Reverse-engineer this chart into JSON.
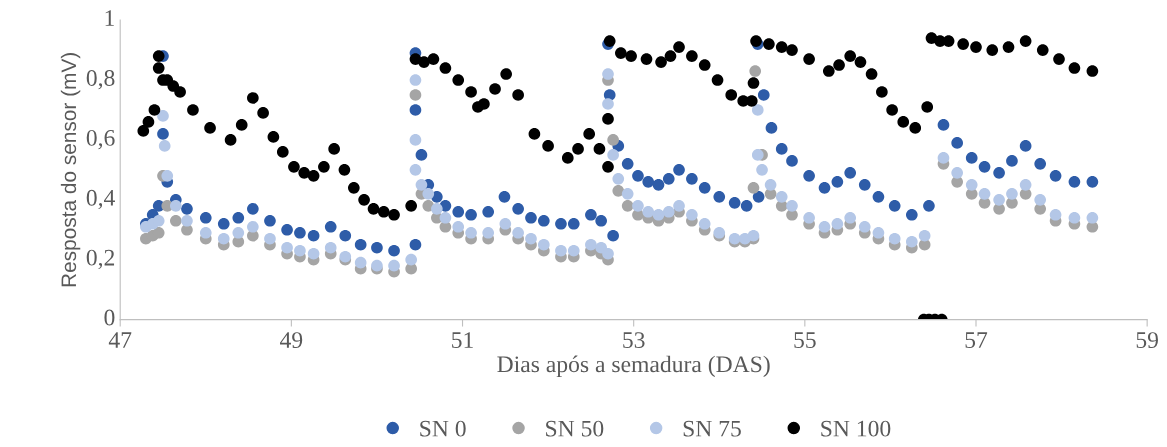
{
  "chart_data": {
    "type": "scatter",
    "xlabel": "Dias após a semadura (DAS)",
    "ylabel": "Resposta do sensor (mV)",
    "xlim": [
      47,
      59
    ],
    "xticks": [
      47,
      49,
      51,
      53,
      55,
      57,
      59
    ],
    "ylim": [
      0,
      1
    ],
    "yticks": [
      0,
      {
        "value": 0.2,
        "label": "0,2"
      },
      {
        "value": 0.4,
        "label": "0,4"
      },
      {
        "value": 0.6,
        "label": "0,6"
      },
      {
        "value": 0.8,
        "label": "0,8"
      },
      1
    ],
    "grid": false,
    "legend": "bottom",
    "marker": "circle",
    "series": [
      {
        "name": "SN 0",
        "color": "#2e5ca8",
        "x": [
          47.3,
          47.38,
          47.45,
          47.5,
          47.5,
          47.55,
          47.65,
          47.78,
          48.0,
          48.21,
          48.38,
          48.55,
          48.75,
          48.95,
          49.1,
          49.26,
          49.46,
          49.63,
          49.81,
          50.0,
          50.2,
          50.45,
          50.45,
          50.45,
          50.52,
          50.6,
          50.7,
          50.8,
          50.95,
          51.1,
          51.3,
          51.49,
          51.65,
          51.8,
          51.95,
          52.15,
          52.3,
          52.5,
          52.62,
          52.76,
          52.7,
          52.72,
          52.82,
          52.93,
          53.05,
          53.17,
          53.29,
          53.41,
          53.53,
          53.68,
          53.83,
          54.0,
          54.18,
          54.32,
          54.46,
          54.45,
          54.52,
          54.61,
          54.73,
          54.85,
          55.05,
          55.23,
          55.38,
          55.53,
          55.7,
          55.86,
          56.05,
          56.25,
          56.45,
          56.62,
          56.78,
          56.95,
          57.1,
          57.27,
          57.42,
          57.58,
          57.75,
          57.93,
          58.15,
          58.36
        ],
        "values": [
          0.32,
          0.35,
          0.38,
          0.88,
          0.62,
          0.46,
          0.4,
          0.37,
          0.34,
          0.32,
          0.34,
          0.37,
          0.33,
          0.3,
          0.29,
          0.28,
          0.31,
          0.28,
          0.25,
          0.24,
          0.23,
          0.25,
          0.89,
          0.7,
          0.55,
          0.45,
          0.41,
          0.38,
          0.36,
          0.35,
          0.36,
          0.41,
          0.37,
          0.34,
          0.33,
          0.32,
          0.32,
          0.35,
          0.33,
          0.28,
          0.92,
          0.75,
          0.58,
          0.52,
          0.48,
          0.46,
          0.45,
          0.47,
          0.5,
          0.47,
          0.44,
          0.41,
          0.39,
          0.38,
          0.41,
          0.92,
          0.75,
          0.64,
          0.57,
          0.53,
          0.48,
          0.44,
          0.46,
          0.49,
          0.45,
          0.41,
          0.38,
          0.35,
          0.38,
          0.65,
          0.59,
          0.54,
          0.51,
          0.49,
          0.53,
          0.58,
          0.52,
          0.48,
          0.46,
          0.46
        ]
      },
      {
        "name": "SN 50",
        "color": "#a5a5a5",
        "x": [
          47.3,
          47.38,
          47.45,
          47.5,
          47.55,
          47.65,
          47.78,
          48.0,
          48.21,
          48.38,
          48.55,
          48.75,
          48.95,
          49.1,
          49.26,
          49.46,
          49.63,
          49.81,
          50.0,
          50.2,
          50.4,
          50.45,
          50.52,
          50.6,
          50.7,
          50.8,
          50.95,
          51.1,
          51.3,
          51.5,
          51.65,
          51.8,
          51.95,
          52.15,
          52.3,
          52.5,
          52.62,
          52.7,
          52.7,
          52.76,
          52.82,
          52.93,
          53.05,
          53.17,
          53.29,
          53.41,
          53.53,
          53.68,
          53.83,
          54.0,
          54.18,
          54.3,
          54.4,
          54.4,
          54.42,
          54.5,
          54.6,
          54.73,
          54.85,
          55.05,
          55.23,
          55.38,
          55.53,
          55.7,
          55.86,
          56.05,
          56.25,
          56.4,
          56.62,
          56.78,
          56.95,
          57.1,
          57.27,
          57.42,
          57.58,
          57.75,
          57.93,
          58.15,
          58.36
        ],
        "values": [
          0.27,
          0.28,
          0.29,
          0.48,
          0.38,
          0.33,
          0.3,
          0.27,
          0.25,
          0.26,
          0.28,
          0.25,
          0.22,
          0.21,
          0.2,
          0.22,
          0.2,
          0.17,
          0.17,
          0.16,
          0.17,
          0.75,
          0.42,
          0.38,
          0.34,
          0.31,
          0.29,
          0.27,
          0.27,
          0.3,
          0.27,
          0.25,
          0.23,
          0.21,
          0.21,
          0.23,
          0.22,
          0.2,
          0.8,
          0.6,
          0.43,
          0.38,
          0.35,
          0.34,
          0.33,
          0.34,
          0.36,
          0.33,
          0.3,
          0.28,
          0.26,
          0.26,
          0.27,
          0.44,
          0.83,
          0.55,
          0.42,
          0.38,
          0.35,
          0.32,
          0.29,
          0.3,
          0.32,
          0.29,
          0.27,
          0.25,
          0.24,
          0.25,
          0.52,
          0.46,
          0.42,
          0.39,
          0.37,
          0.39,
          0.42,
          0.37,
          0.33,
          0.32,
          0.31
        ]
      },
      {
        "name": "SN 75",
        "color": "#b4c7e7",
        "x": [
          47.3,
          47.38,
          47.45,
          47.5,
          47.52,
          47.55,
          47.65,
          47.78,
          48.0,
          48.21,
          48.38,
          48.55,
          48.75,
          48.95,
          49.1,
          49.26,
          49.46,
          49.63,
          49.81,
          50.0,
          50.2,
          50.4,
          50.45,
          50.45,
          50.45,
          50.52,
          50.6,
          50.7,
          50.8,
          50.95,
          51.1,
          51.3,
          51.5,
          51.65,
          51.8,
          51.95,
          52.15,
          52.3,
          52.5,
          52.62,
          52.7,
          52.7,
          52.7,
          52.76,
          52.82,
          52.93,
          53.05,
          53.17,
          53.29,
          53.41,
          53.53,
          53.68,
          53.83,
          54.0,
          54.18,
          54.3,
          54.4,
          54.45,
          54.45,
          54.5,
          54.6,
          54.73,
          54.85,
          55.05,
          55.23,
          55.38,
          55.53,
          55.7,
          55.86,
          56.05,
          56.25,
          56.4,
          56.62,
          56.78,
          56.95,
          57.1,
          57.27,
          57.42,
          57.58,
          57.75,
          57.93,
          58.15,
          58.36
        ],
        "values": [
          0.31,
          0.32,
          0.33,
          0.68,
          0.58,
          0.48,
          0.38,
          0.33,
          0.29,
          0.27,
          0.29,
          0.31,
          0.27,
          0.24,
          0.23,
          0.22,
          0.24,
          0.21,
          0.19,
          0.18,
          0.18,
          0.2,
          0.8,
          0.6,
          0.5,
          0.45,
          0.42,
          0.37,
          0.34,
          0.31,
          0.29,
          0.29,
          0.32,
          0.29,
          0.27,
          0.25,
          0.23,
          0.23,
          0.25,
          0.24,
          0.22,
          0.82,
          0.72,
          0.55,
          0.47,
          0.42,
          0.38,
          0.36,
          0.35,
          0.36,
          0.38,
          0.35,
          0.32,
          0.29,
          0.27,
          0.27,
          0.28,
          0.7,
          0.55,
          0.5,
          0.45,
          0.41,
          0.38,
          0.34,
          0.31,
          0.32,
          0.34,
          0.31,
          0.29,
          0.27,
          0.26,
          0.28,
          0.54,
          0.49,
          0.45,
          0.42,
          0.4,
          0.42,
          0.45,
          0.4,
          0.35,
          0.34,
          0.34
        ]
      },
      {
        "name": "SN 100",
        "color": "#000000",
        "x": [
          47.27,
          47.33,
          47.4,
          47.45,
          47.45,
          47.5,
          47.55,
          47.62,
          47.7,
          47.85,
          48.05,
          48.29,
          48.42,
          48.55,
          48.67,
          48.79,
          48.9,
          49.03,
          49.15,
          49.26,
          49.38,
          49.5,
          49.62,
          49.73,
          49.85,
          49.96,
          50.08,
          50.2,
          50.4,
          50.45,
          50.55,
          50.66,
          50.8,
          50.95,
          51.1,
          51.18,
          51.25,
          51.38,
          51.51,
          51.65,
          51.84,
          52.0,
          52.23,
          52.35,
          52.48,
          52.6,
          52.7,
          52.7,
          52.72,
          52.85,
          52.97,
          53.15,
          53.32,
          53.43,
          53.53,
          53.68,
          53.83,
          53.98,
          54.14,
          54.28,
          54.38,
          54.4,
          54.43,
          54.58,
          54.73,
          54.85,
          55.05,
          55.28,
          55.4,
          55.53,
          55.65,
          55.78,
          55.9,
          56.02,
          56.15,
          56.29,
          56.43,
          56.39,
          56.45,
          56.52,
          56.6,
          56.48,
          56.58,
          56.68,
          56.85,
          57.0,
          57.19,
          57.38,
          57.58,
          57.78,
          57.97,
          58.15,
          58.36
        ],
        "values": [
          0.63,
          0.66,
          0.7,
          0.88,
          0.84,
          0.8,
          0.8,
          0.78,
          0.76,
          0.7,
          0.64,
          0.6,
          0.65,
          0.74,
          0.69,
          0.61,
          0.56,
          0.51,
          0.49,
          0.48,
          0.51,
          0.57,
          0.5,
          0.44,
          0.4,
          0.37,
          0.36,
          0.35,
          0.38,
          0.87,
          0.86,
          0.87,
          0.84,
          0.8,
          0.76,
          0.71,
          0.72,
          0.77,
          0.82,
          0.75,
          0.62,
          0.58,
          0.54,
          0.57,
          0.62,
          0.57,
          0.51,
          0.67,
          0.93,
          0.89,
          0.88,
          0.87,
          0.86,
          0.88,
          0.91,
          0.88,
          0.85,
          0.8,
          0.75,
          0.73,
          0.73,
          0.79,
          0.93,
          0.92,
          0.91,
          0.9,
          0.87,
          0.83,
          0.85,
          0.88,
          0.86,
          0.82,
          0.76,
          0.7,
          0.66,
          0.64,
          0.71,
          0,
          0,
          0,
          0,
          0.94,
          0.93,
          0.93,
          0.92,
          0.91,
          0.9,
          0.91,
          0.93,
          0.9,
          0.87,
          0.84,
          0.83
        ]
      }
    ]
  }
}
